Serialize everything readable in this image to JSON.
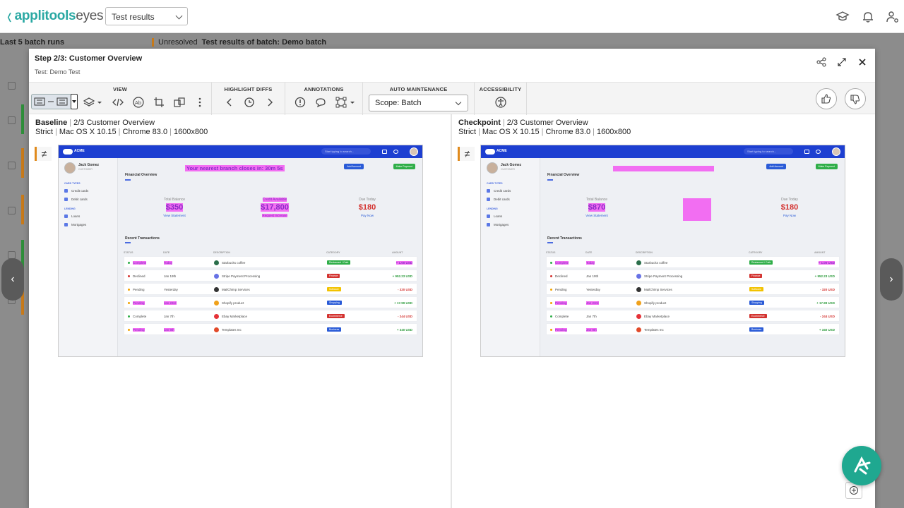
{
  "app": {
    "logo_primary": "applitools",
    "logo_secondary": "eyes",
    "view_select": "Test results"
  },
  "background": {
    "left_header": "Last 5 batch runs",
    "status": "Unresolved",
    "batch_title": "Test results of batch: Demo batch"
  },
  "modal": {
    "title": "Step 2/3: Customer Overview",
    "subtitle": "Test: Demo Test",
    "toolbar": {
      "view_label": "VIEW",
      "highlight_label": "HIGHLIGHT DIFFS",
      "annotations_label": "ANNOTATIONS",
      "auto_label": "AUTO MAINTENANCE",
      "scope_value": "Scope: Batch",
      "accessibility_label": "ACCESSIBILITY"
    },
    "baseline": {
      "label": "Baseline",
      "step": "2/3 Customer Overview",
      "match": "Strict",
      "os": "Mac OS X 10.15",
      "browser": "Chrome 83.0",
      "viewport": "1600x800"
    },
    "checkpoint": {
      "label": "Checkpoint",
      "step": "2/3 Customer Overview",
      "match": "Strict",
      "os": "Mac OS X 10.15",
      "browser": "Chrome 83.0",
      "viewport": "1600x800"
    }
  },
  "screenshot": {
    "brand": "ACME",
    "search_placeholder": "Start typing to search...",
    "user_name": "Jack Gomez",
    "user_role": "CUSTOMER",
    "section_cards": "CARD TYPES",
    "item_credit": "Credit cards",
    "item_debit": "Debit cards",
    "section_lending": "LENDING",
    "item_loans": "Loans",
    "item_mortgages": "Mortgages",
    "financial_overview": "Financial Overview",
    "banner": "Your nearest branch closes in: 30m 5s",
    "add_account": "Add Account",
    "make_payment": "Make Payment",
    "total_balance_label": "Total Balance",
    "baseline_total": "$350",
    "checkpoint_total": "$870",
    "view_statement": "View Statement",
    "credit_available_label": "Credit Available",
    "credit_available_value": "$17,800",
    "request_increase": "Request Increase",
    "due_today_label": "Due Today",
    "due_today_value": "$180",
    "pay_now": "Pay Now",
    "recent_transactions": "Recent Transactions",
    "columns": [
      "STATUS",
      "DATE",
      "DESCRIPTION",
      "CATEGORY",
      "AMOUNT"
    ],
    "rows": [
      {
        "status": "Complete",
        "date": "Today",
        "desc": "Starbucks coffee",
        "cat": "Restaurant / Cafe",
        "amount": "+ 1.00 USD",
        "cat_color": "#2fae48",
        "dot": "#2fae48",
        "amt_class": "pos",
        "icon": "#2a6e4a"
      },
      {
        "status": "Declined",
        "date": "Jan 19th",
        "desc": "Stripe Payment Processing",
        "cat": "Finance",
        "amount": "+ 952.23 USD",
        "cat_color": "#d3322f",
        "dot": "#d3322f",
        "amt_class": "pos",
        "icon": "#6772e5"
      },
      {
        "status": "Pending",
        "date": "Yesterday",
        "desc": "MailChimp Services",
        "cat": "Software",
        "amount": "- 320 USD",
        "cat_color": "#f2c200",
        "dot": "#f2a200",
        "amt_class": "neg",
        "icon": "#333333"
      },
      {
        "status": "Pending",
        "date": "Jan 23rd",
        "desc": "Shopify product",
        "cat": "Shopping",
        "amount": "+ 17.99 USD",
        "cat_color": "#2a5bd7",
        "dot": "#f2a200",
        "amt_class": "pos",
        "icon": "#f0a11a"
      },
      {
        "status": "Complete",
        "date": "Jan 7th",
        "desc": "Ebay Marketplace",
        "cat": "Ecommerce",
        "amount": "- 244 USD",
        "cat_color": "#d3322f",
        "dot": "#2fae48",
        "amt_class": "neg",
        "icon": "#e53238"
      },
      {
        "status": "Pending",
        "date": "Jan 9th",
        "desc": "Templates Inc",
        "cat": "Business",
        "amount": "+ 340 USD",
        "cat_color": "#2a5bd7",
        "dot": "#f2a200",
        "amt_class": "pos",
        "icon": "#e24a2a"
      }
    ]
  }
}
